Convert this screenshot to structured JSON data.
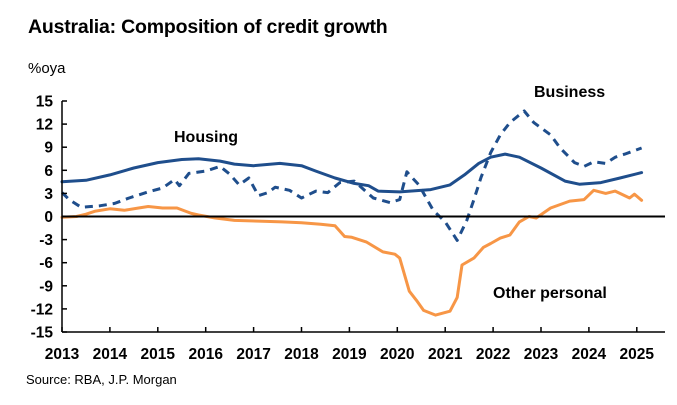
{
  "chart_data": {
    "type": "line",
    "title": "Australia: Composition of credit growth",
    "ylabel": "%oya",
    "xlabel": "",
    "source": "Source: RBA, J.P. Morgan",
    "ylim": [
      -15,
      15
    ],
    "xlim": [
      2013,
      2025.6
    ],
    "yticks": [
      15,
      12,
      9,
      6,
      3,
      0,
      -3,
      -6,
      -9,
      -12,
      -15
    ],
    "xticks": [
      2013,
      2014,
      2015,
      2016,
      2017,
      2018,
      2019,
      2020,
      2021,
      2022,
      2023,
      2024,
      2025
    ],
    "grid": false,
    "legend": "inline labels",
    "series": [
      {
        "name": "Housing",
        "color": "#1F4E8C",
        "style": "solid",
        "label_position": "above line, 2015",
        "x": [
          2013.0,
          2013.5,
          2014.0,
          2014.5,
          2015.0,
          2015.5,
          2015.85,
          2016.3,
          2016.6,
          2017.0,
          2017.55,
          2018.0,
          2018.3,
          2018.7,
          2019.1,
          2019.4,
          2019.6,
          2020.05,
          2020.7,
          2021.1,
          2021.4,
          2021.7,
          2021.95,
          2022.25,
          2022.55,
          2023.0,
          2023.5,
          2023.8,
          2024.25,
          2024.65,
          2025.1
        ],
        "values": [
          4.5,
          4.7,
          5.4,
          6.3,
          7.0,
          7.4,
          7.5,
          7.2,
          6.8,
          6.6,
          6.9,
          6.6,
          5.9,
          5.0,
          4.3,
          4.0,
          3.3,
          3.2,
          3.5,
          4.1,
          5.4,
          6.9,
          7.7,
          8.1,
          7.7,
          6.3,
          4.6,
          4.2,
          4.4,
          5.0,
          5.7
        ]
      },
      {
        "name": "Business",
        "color": "#1F4E8C",
        "style": "dashed",
        "label_position": "above peak, 2023",
        "x": [
          2013.0,
          2013.15,
          2013.4,
          2013.6,
          2013.8,
          2014.1,
          2014.4,
          2014.8,
          2015.1,
          2015.35,
          2015.45,
          2015.65,
          2016.0,
          2016.3,
          2016.5,
          2016.7,
          2016.9,
          2017.1,
          2017.3,
          2017.45,
          2017.75,
          2018.0,
          2018.3,
          2018.55,
          2018.8,
          2019.1,
          2019.5,
          2019.85,
          2020.05,
          2020.2,
          2020.3,
          2020.45,
          2020.75,
          2021.0,
          2021.25,
          2021.45,
          2021.6,
          2021.75,
          2021.95,
          2022.15,
          2022.35,
          2022.65,
          2022.85,
          2023.2,
          2023.4,
          2023.7,
          2023.9,
          2024.1,
          2024.35,
          2024.55,
          2024.75,
          2025.1
        ],
        "values": [
          3.1,
          2.2,
          1.2,
          1.3,
          1.4,
          1.7,
          2.4,
          3.2,
          3.7,
          4.8,
          4.0,
          5.6,
          5.9,
          6.5,
          5.5,
          4.1,
          5.0,
          2.7,
          3.1,
          3.8,
          3.4,
          2.4,
          3.3,
          3.1,
          4.4,
          4.6,
          2.4,
          1.8,
          2.2,
          5.8,
          5.1,
          4.1,
          0.8,
          -0.7,
          -3.1,
          -0.5,
          2.2,
          5.1,
          8.3,
          10.6,
          12.2,
          13.7,
          12.2,
          10.6,
          8.9,
          7.0,
          6.5,
          7.1,
          6.9,
          7.7,
          8.1,
          8.9
        ]
      },
      {
        "name": "Other personal",
        "color": "#F79646",
        "style": "solid",
        "label_position": "below right, 2023-2024",
        "x": [
          2013.0,
          2013.3,
          2013.5,
          2013.7,
          2014.0,
          2014.3,
          2014.6,
          2014.8,
          2015.1,
          2015.4,
          2015.7,
          2015.85,
          2016.2,
          2016.6,
          2017.1,
          2017.6,
          2018.0,
          2018.4,
          2018.7,
          2018.9,
          2019.05,
          2019.35,
          2019.7,
          2019.95,
          2020.05,
          2020.25,
          2020.4,
          2020.55,
          2020.8,
          2021.1,
          2021.25,
          2021.35,
          2021.6,
          2021.8,
          2021.95,
          2022.15,
          2022.35,
          2022.55,
          2022.75,
          2022.9,
          2023.2,
          2023.6,
          2023.9,
          2024.1,
          2024.35,
          2024.55,
          2024.85,
          2024.95,
          2025.1
        ],
        "values": [
          -0.1,
          0.0,
          0.3,
          0.7,
          1.0,
          0.8,
          1.1,
          1.3,
          1.1,
          1.1,
          0.4,
          0.2,
          -0.2,
          -0.5,
          -0.6,
          -0.7,
          -0.8,
          -1.0,
          -1.2,
          -2.6,
          -2.7,
          -3.3,
          -4.6,
          -4.9,
          -5.4,
          -9.7,
          -10.9,
          -12.2,
          -12.8,
          -12.3,
          -10.5,
          -6.3,
          -5.4,
          -4.0,
          -3.5,
          -2.8,
          -2.4,
          -0.7,
          0.0,
          -0.2,
          1.1,
          2.0,
          2.2,
          3.4,
          3.0,
          3.3,
          2.4,
          2.9,
          2.1
        ]
      }
    ]
  }
}
